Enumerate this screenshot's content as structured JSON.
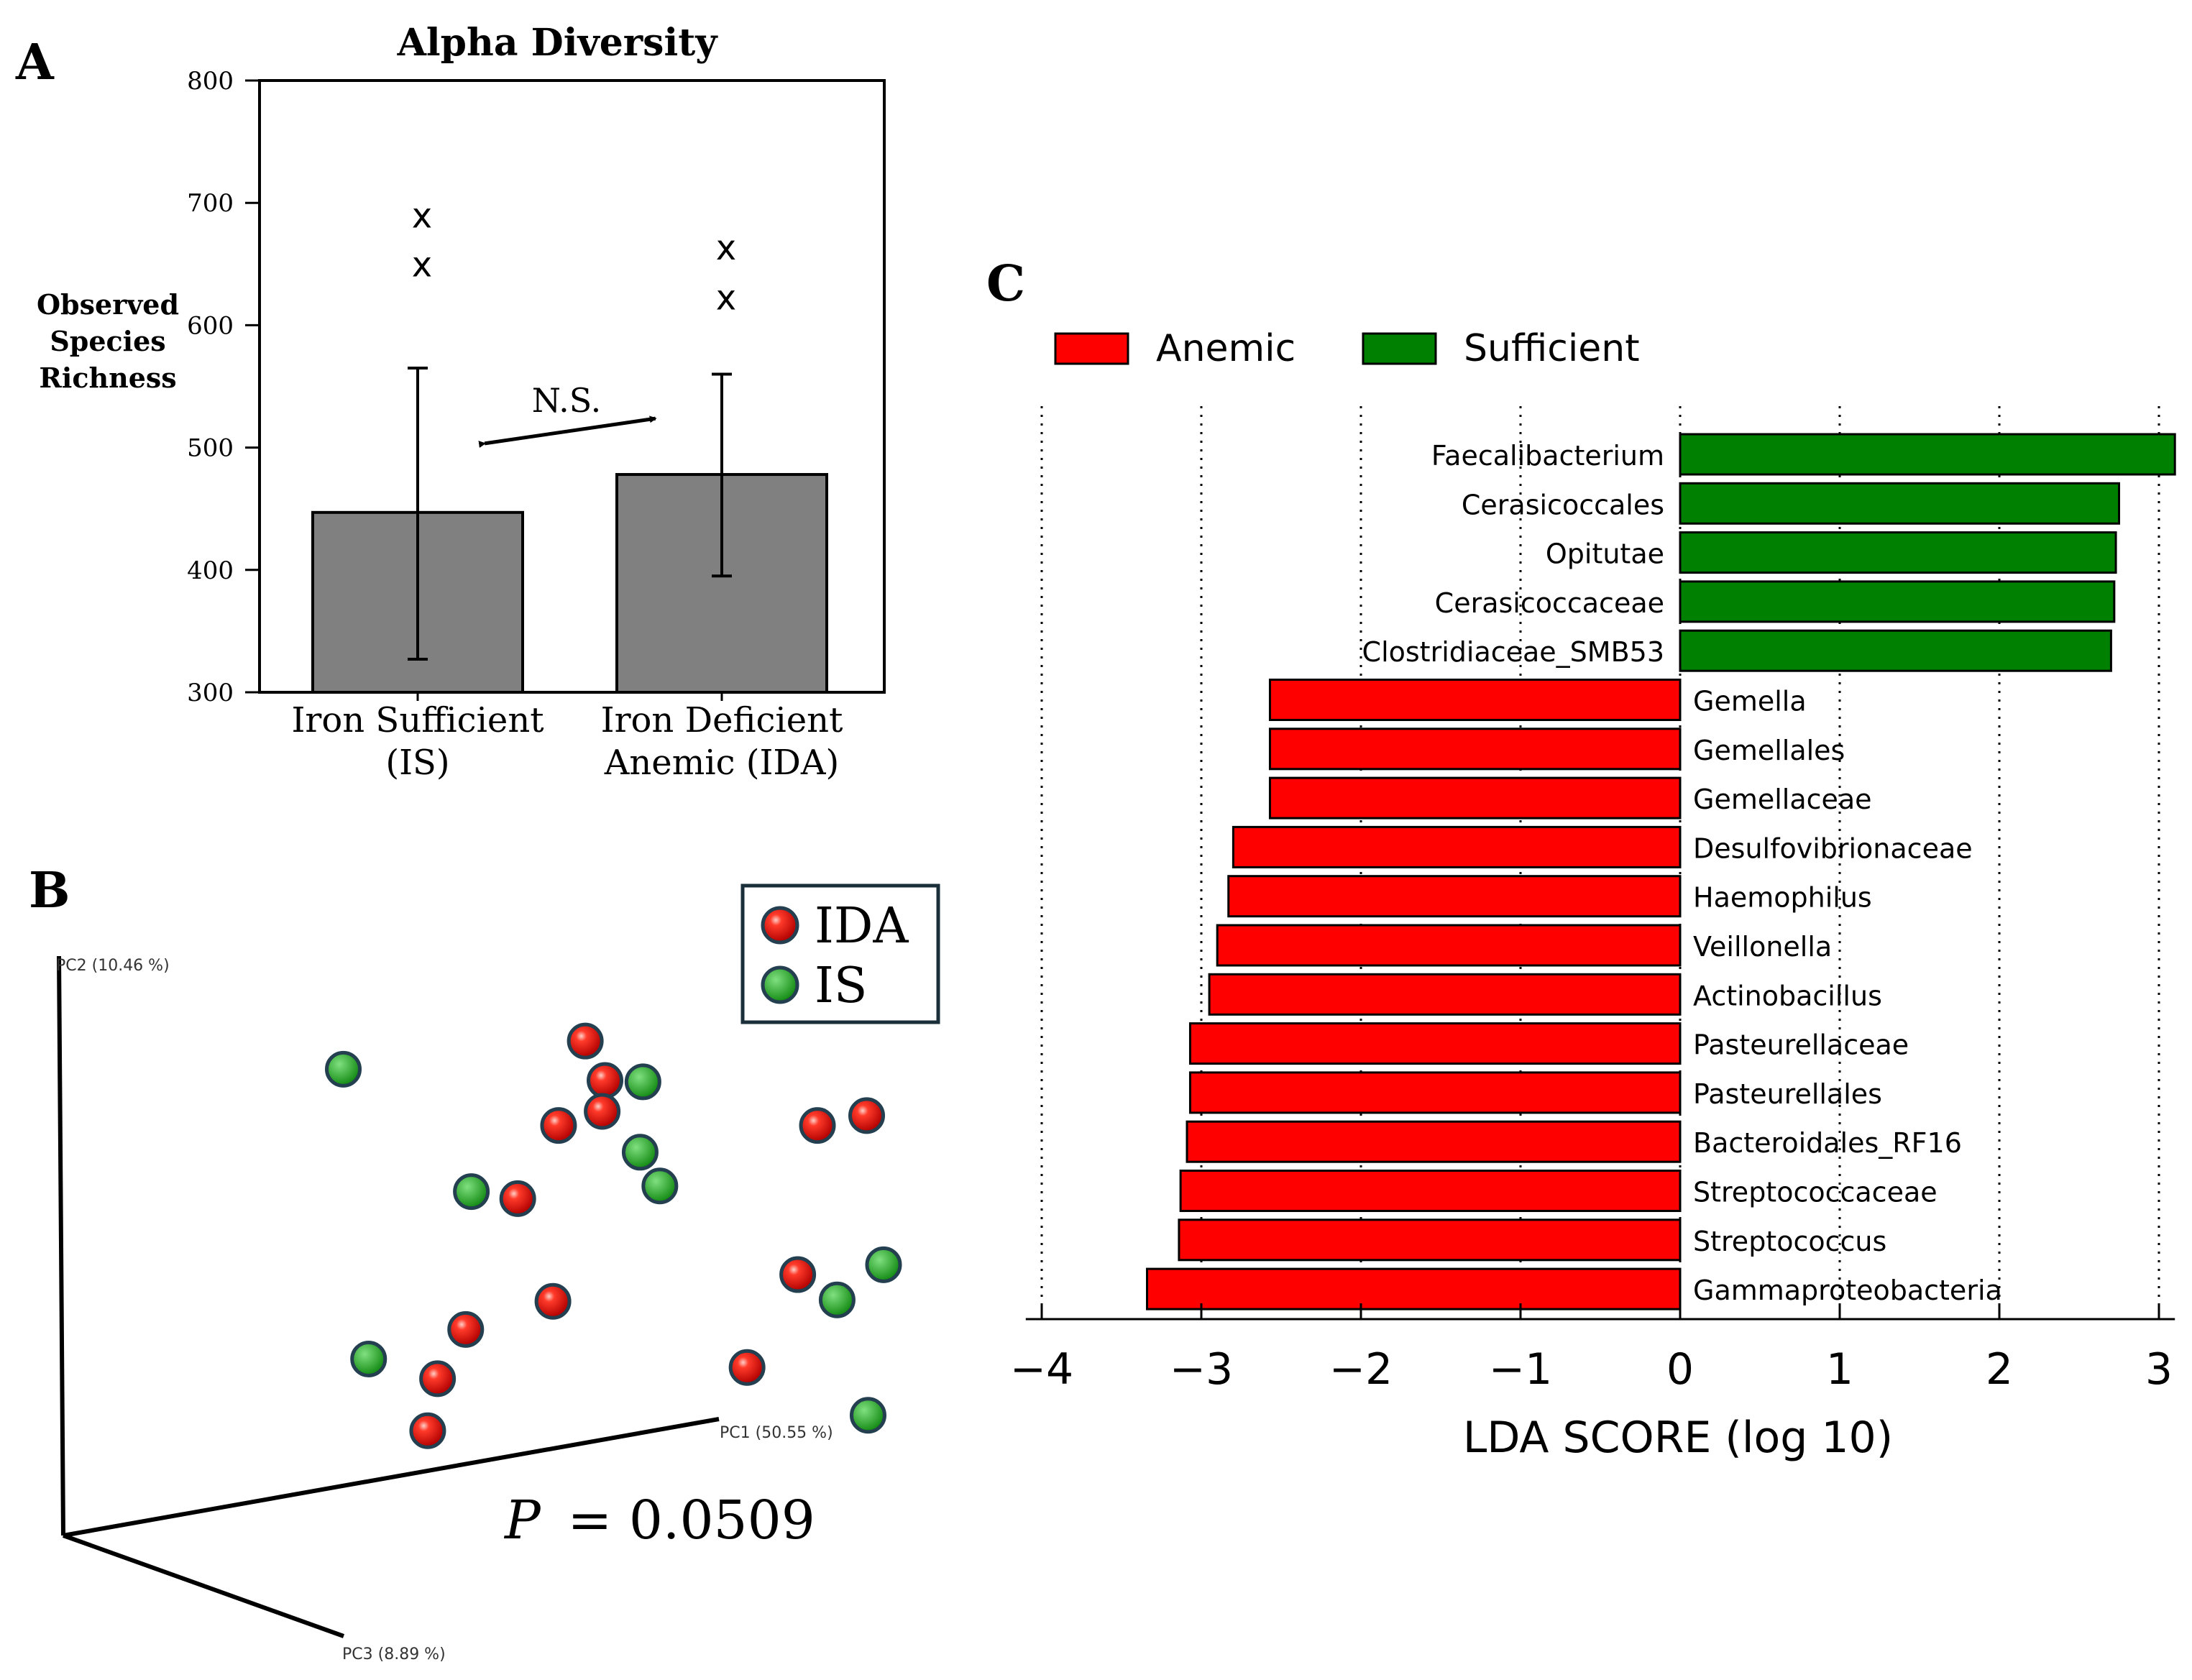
{
  "panels": {
    "a_label": "A",
    "b_label": "B",
    "c_label": "C"
  },
  "chart_data": [
    {
      "panel": "A",
      "type": "bar",
      "title": "Alpha Diversity",
      "ylabel_lines": [
        "Observed",
        "Species",
        "Richness"
      ],
      "xlabel": "",
      "categories": [
        {
          "line1": "Iron Sufficient",
          "line2": "(IS)"
        },
        {
          "line1": "Iron Deficient",
          "line2": "Anemic (IDA)"
        }
      ],
      "values": [
        447,
        478
      ],
      "error_low": [
        327,
        395
      ],
      "error_high": [
        565,
        560
      ],
      "outliers": [
        [
          648,
          688
        ],
        [
          621,
          662
        ]
      ],
      "outlier_marker": "x",
      "ylim": [
        300,
        800
      ],
      "yticks": [
        300,
        400,
        500,
        600,
        700,
        800
      ],
      "annotation": "N.S.",
      "bar_color": "#808080"
    },
    {
      "panel": "B",
      "type": "scatter",
      "title": "",
      "axes": {
        "pc1": "PC1 (50.55 %)",
        "pc2": "PC2 (10.46 %)",
        "pc3": "PC3 (8.89 %)"
      },
      "legend": {
        "placement": "top-right",
        "items": [
          {
            "label": "IDA",
            "color": "#e8120c"
          },
          {
            "label": "IS",
            "color": "#1f9e1f"
          }
        ]
      },
      "stat_label": "P",
      "stat_value": "= 0.0509",
      "series": [
        {
          "name": "IDA",
          "points": [
            [
              416,
              740
            ],
            [
              430,
              768
            ],
            [
              428,
              790
            ],
            [
              397,
              800
            ],
            [
              368,
              852
            ],
            [
              581,
              800
            ],
            [
              616,
              793
            ],
            [
              567,
              906
            ],
            [
              393,
              925
            ],
            [
              331,
              945
            ],
            [
              311,
              980
            ],
            [
              531,
              972
            ],
            [
              304,
              1017
            ]
          ]
        },
        {
          "name": "IS",
          "points": [
            [
              244,
              760
            ],
            [
              457,
              769
            ],
            [
              455,
              819
            ],
            [
              469,
              843
            ],
            [
              335,
              847
            ],
            [
              628,
              899
            ],
            [
              595,
              924
            ],
            [
              262,
              966
            ],
            [
              617,
              1006
            ]
          ]
        }
      ]
    },
    {
      "panel": "C",
      "type": "bar",
      "orientation": "horizontal",
      "title": "",
      "xlabel": "LDA SCORE (log 10)",
      "xlim": [
        -4.1,
        3.1
      ],
      "xticks": [
        -4,
        -3,
        -2,
        -1,
        0,
        1,
        2,
        3
      ],
      "xtick_labels": [
        "−4",
        "−3",
        "−2",
        "−1",
        "0",
        "1",
        "2",
        "3"
      ],
      "legend": {
        "placement": "top-left",
        "items": [
          {
            "label": "Anemic",
            "color": "#ff0000"
          },
          {
            "label": "Sufficient",
            "color": "#008000"
          }
        ]
      },
      "categories": [
        "Faecalibacterium",
        "Cerasicoccales",
        "Opitutae",
        "Cerasicoccaceae",
        "Clostridiaceae_SMB53",
        "Gemella",
        "Gemellales",
        "Gemellaceae",
        "Desulfovibrionaceae",
        "Haemophilus",
        "Veillonella",
        "Actinobacillus",
        "Pasteurellaceae",
        "Pasteurellales",
        "Bacteroidales_RF16",
        "Streptococcaceae",
        "Streptococcus",
        "Gammaproteobacteria"
      ],
      "values": [
        3.1,
        2.75,
        2.73,
        2.72,
        2.7,
        -2.57,
        -2.57,
        -2.57,
        -2.8,
        -2.83,
        -2.9,
        -2.95,
        -3.07,
        -3.07,
        -3.09,
        -3.13,
        -3.14,
        -3.34
      ],
      "groups": [
        "Sufficient",
        "Sufficient",
        "Sufficient",
        "Sufficient",
        "Sufficient",
        "Anemic",
        "Anemic",
        "Anemic",
        "Anemic",
        "Anemic",
        "Anemic",
        "Anemic",
        "Anemic",
        "Anemic",
        "Anemic",
        "Anemic",
        "Anemic",
        "Anemic"
      ]
    }
  ]
}
